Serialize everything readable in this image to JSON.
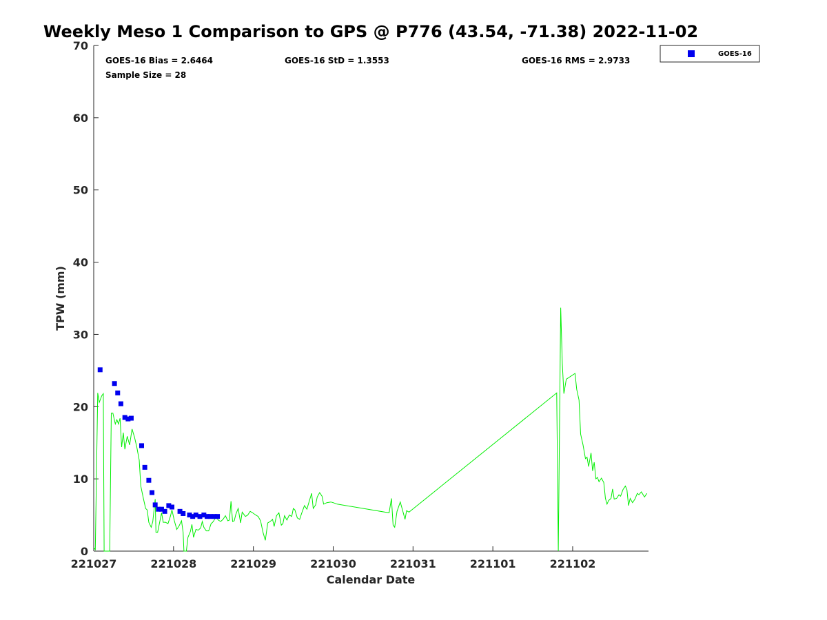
{
  "chart_data": {
    "type": "scatter",
    "title": "Weekly Meso 1 Comparison to GPS @ P776 (43.54, -71.38) 2022-11-02",
    "xlabel": "Calendar Date",
    "ylabel": "TPW (mm)",
    "x_tick_labels": [
      "221027",
      "221028",
      "221029",
      "221030",
      "221031",
      "221101",
      "221102"
    ],
    "y_ticks": [
      0,
      10,
      20,
      30,
      40,
      50,
      60,
      70
    ],
    "ylim": [
      0,
      70
    ],
    "xlim_days": [
      0,
      6.95
    ],
    "grid": false,
    "legend": {
      "position": "top-right-outside",
      "entries": [
        "GOES-16"
      ]
    },
    "stats": {
      "bias": "GOES-16 Bias = 2.6464",
      "std": "GOES-16 StD = 1.3553",
      "rms": "GOES-16 RMS = 2.9733",
      "sample": "Sample Size = 28"
    },
    "series": [
      {
        "name": "GOES-16",
        "style": "markers",
        "color": "#0000ee",
        "points": [
          [
            0.08,
            25.1
          ],
          [
            0.26,
            23.2
          ],
          [
            0.3,
            21.9
          ],
          [
            0.34,
            20.4
          ],
          [
            0.39,
            18.5
          ],
          [
            0.43,
            18.3
          ],
          [
            0.47,
            18.4
          ],
          [
            0.6,
            14.6
          ],
          [
            0.64,
            11.6
          ],
          [
            0.69,
            9.8
          ],
          [
            0.73,
            8.1
          ],
          [
            0.77,
            6.4
          ],
          [
            0.81,
            5.8
          ],
          [
            0.85,
            5.8
          ],
          [
            0.89,
            5.5
          ],
          [
            0.94,
            6.3
          ],
          [
            0.98,
            6.1
          ],
          [
            1.08,
            5.5
          ],
          [
            1.12,
            5.2
          ],
          [
            1.2,
            5.0
          ],
          [
            1.24,
            4.8
          ],
          [
            1.28,
            5.0
          ],
          [
            1.33,
            4.8
          ],
          [
            1.38,
            5.0
          ],
          [
            1.42,
            4.8
          ],
          [
            1.46,
            4.8
          ],
          [
            1.51,
            4.8
          ],
          [
            1.55,
            4.8
          ]
        ]
      },
      {
        "name": "GPS",
        "style": "line",
        "color": "#00ee00",
        "points": [
          [
            0.0,
            0.5
          ],
          [
            0.02,
            0.2
          ],
          [
            0.05,
            21.9
          ],
          [
            0.07,
            20.6
          ],
          [
            0.1,
            21.5
          ],
          [
            0.12,
            21.8
          ],
          [
            0.13,
            0
          ],
          [
            0.2,
            0
          ],
          [
            0.22,
            19.1
          ],
          [
            0.24,
            19.1
          ],
          [
            0.27,
            17.6
          ],
          [
            0.29,
            18.2
          ],
          [
            0.31,
            17.6
          ],
          [
            0.33,
            18.4
          ],
          [
            0.35,
            14.4
          ],
          [
            0.37,
            16.4
          ],
          [
            0.39,
            14.1
          ],
          [
            0.42,
            15.9
          ],
          [
            0.45,
            14.7
          ],
          [
            0.48,
            16.9
          ],
          [
            0.51,
            15.8
          ],
          [
            0.54,
            14.4
          ],
          [
            0.57,
            12.6
          ],
          [
            0.59,
            9.0
          ],
          [
            0.62,
            7.4
          ],
          [
            0.65,
            5.9
          ],
          [
            0.67,
            5.7
          ],
          [
            0.69,
            4.0
          ],
          [
            0.72,
            3.3
          ],
          [
            0.74,
            4.1
          ],
          [
            0.77,
            7.2
          ],
          [
            0.78,
            2.6
          ],
          [
            0.8,
            2.6
          ],
          [
            0.83,
            4.2
          ],
          [
            0.85,
            5.3
          ],
          [
            0.87,
            4.0
          ],
          [
            0.9,
            4.0
          ],
          [
            0.93,
            3.8
          ],
          [
            0.96,
            4.8
          ],
          [
            0.98,
            5.7
          ],
          [
            1.01,
            4.2
          ],
          [
            1.04,
            3.0
          ],
          [
            1.07,
            3.5
          ],
          [
            1.1,
            4.2
          ],
          [
            1.12,
            2.6
          ],
          [
            1.13,
            0
          ],
          [
            1.16,
            0
          ],
          [
            1.18,
            1.9
          ],
          [
            1.21,
            2.7
          ],
          [
            1.23,
            3.7
          ],
          [
            1.25,
            1.9
          ],
          [
            1.28,
            3.0
          ],
          [
            1.31,
            2.9
          ],
          [
            1.34,
            3.2
          ],
          [
            1.36,
            4.1
          ],
          [
            1.38,
            3.3
          ],
          [
            1.41,
            2.8
          ],
          [
            1.44,
            2.8
          ],
          [
            1.47,
            3.8
          ],
          [
            1.5,
            4.1
          ],
          [
            1.53,
            4.8
          ],
          [
            1.56,
            4.3
          ],
          [
            1.59,
            4.1
          ],
          [
            1.62,
            4.4
          ],
          [
            1.65,
            4.9
          ],
          [
            1.68,
            4.2
          ],
          [
            1.7,
            4.3
          ],
          [
            1.72,
            6.9
          ],
          [
            1.74,
            4.1
          ],
          [
            1.76,
            4.2
          ],
          [
            1.78,
            5.1
          ],
          [
            1.81,
            5.9
          ],
          [
            1.84,
            3.9
          ],
          [
            1.86,
            5.4
          ],
          [
            1.9,
            4.8
          ],
          [
            1.93,
            5.0
          ],
          [
            1.96,
            5.5
          ],
          [
            1.99,
            5.3
          ],
          [
            2.03,
            5.0
          ],
          [
            2.06,
            4.8
          ],
          [
            2.09,
            4.2
          ],
          [
            2.12,
            2.6
          ],
          [
            2.15,
            1.5
          ],
          [
            2.18,
            3.9
          ],
          [
            2.21,
            4.1
          ],
          [
            2.24,
            4.4
          ],
          [
            2.26,
            3.4
          ],
          [
            2.29,
            4.9
          ],
          [
            2.32,
            5.3
          ],
          [
            2.35,
            3.6
          ],
          [
            2.37,
            3.8
          ],
          [
            2.39,
            4.9
          ],
          [
            2.42,
            4.3
          ],
          [
            2.45,
            5.0
          ],
          [
            2.48,
            4.8
          ],
          [
            2.5,
            5.9
          ],
          [
            2.52,
            5.7
          ],
          [
            2.55,
            4.6
          ],
          [
            2.58,
            4.4
          ],
          [
            2.61,
            5.4
          ],
          [
            2.64,
            6.3
          ],
          [
            2.67,
            5.8
          ],
          [
            2.7,
            6.9
          ],
          [
            2.73,
            8.0
          ],
          [
            2.75,
            5.9
          ],
          [
            2.78,
            6.4
          ],
          [
            2.8,
            7.5
          ],
          [
            2.83,
            8.1
          ],
          [
            2.86,
            7.6
          ],
          [
            2.88,
            6.5
          ],
          [
            2.92,
            6.7
          ],
          [
            2.97,
            6.8
          ],
          [
            3.0,
            6.7
          ],
          [
            3.05,
            6.5
          ],
          [
            3.7,
            5.3
          ],
          [
            3.73,
            7.3
          ],
          [
            3.75,
            3.6
          ],
          [
            3.77,
            3.3
          ],
          [
            3.8,
            5.5
          ],
          [
            3.84,
            6.8
          ],
          [
            3.87,
            5.6
          ],
          [
            3.9,
            4.4
          ],
          [
            3.92,
            5.6
          ],
          [
            3.95,
            5.4
          ],
          [
            5.8,
            21.9
          ],
          [
            5.82,
            0
          ],
          [
            5.85,
            33.7
          ],
          [
            5.87,
            26.0
          ],
          [
            5.89,
            21.8
          ],
          [
            5.92,
            23.8
          ],
          [
            6.03,
            24.6
          ],
          [
            6.05,
            22.4
          ],
          [
            6.08,
            20.9
          ],
          [
            6.1,
            16.2
          ],
          [
            6.13,
            14.7
          ],
          [
            6.16,
            12.8
          ],
          [
            6.18,
            13.0
          ],
          [
            6.2,
            11.7
          ],
          [
            6.23,
            13.6
          ],
          [
            6.25,
            11.1
          ],
          [
            6.27,
            12.3
          ],
          [
            6.29,
            10.0
          ],
          [
            6.31,
            10.2
          ],
          [
            6.33,
            9.6
          ],
          [
            6.36,
            10.1
          ],
          [
            6.39,
            9.5
          ],
          [
            6.41,
            7.3
          ],
          [
            6.43,
            6.5
          ],
          [
            6.45,
            7.0
          ],
          [
            6.48,
            7.3
          ],
          [
            6.5,
            8.6
          ],
          [
            6.52,
            7.2
          ],
          [
            6.55,
            7.3
          ],
          [
            6.58,
            7.8
          ],
          [
            6.6,
            7.6
          ],
          [
            6.63,
            8.5
          ],
          [
            6.66,
            9.0
          ],
          [
            6.68,
            8.5
          ],
          [
            6.7,
            6.3
          ],
          [
            6.72,
            7.3
          ],
          [
            6.75,
            6.7
          ],
          [
            6.78,
            7.2
          ],
          [
            6.81,
            8.0
          ],
          [
            6.83,
            7.8
          ],
          [
            6.86,
            8.2
          ],
          [
            6.9,
            7.5
          ],
          [
            6.93,
            8.0
          ]
        ]
      }
    ]
  }
}
